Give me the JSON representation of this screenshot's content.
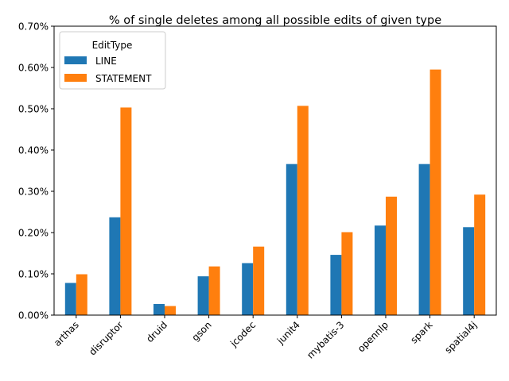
{
  "chart_data": {
    "type": "bar",
    "title": "% of single deletes among all possible edits of given type",
    "xlabel": "",
    "ylabel": "",
    "categories": [
      "arthas",
      "disruptor",
      "druid",
      "gson",
      "jcodec",
      "junit4",
      "mybatis-3",
      "opennlp",
      "spark",
      "spatial4j"
    ],
    "series": [
      {
        "name": "LINE",
        "color": "#1f77b4",
        "values": [
          0.078,
          0.237,
          0.027,
          0.094,
          0.126,
          0.366,
          0.146,
          0.217,
          0.366,
          0.213
        ]
      },
      {
        "name": "STATEMENT",
        "color": "#ff7f0e",
        "values": [
          0.099,
          0.503,
          0.022,
          0.118,
          0.166,
          0.507,
          0.201,
          0.287,
          0.595,
          0.292
        ]
      }
    ],
    "ylim": [
      0,
      0.7
    ],
    "y_ticks": [
      "0.00%",
      "0.10%",
      "0.20%",
      "0.30%",
      "0.40%",
      "0.50%",
      "0.60%",
      "0.70%"
    ],
    "y_tick_values": [
      0,
      0.1,
      0.2,
      0.3,
      0.4,
      0.5,
      0.6,
      0.7
    ],
    "legend": {
      "title": "EditType",
      "position": "top-left"
    },
    "grid": false
  }
}
